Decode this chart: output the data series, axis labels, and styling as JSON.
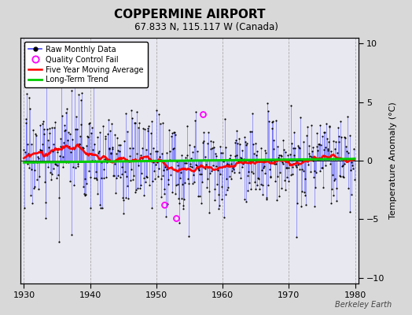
{
  "title": "COPPERMINE AIRPORT",
  "subtitle": "67.833 N, 115.117 W (Canada)",
  "ylabel": "Temperature Anomaly (°C)",
  "watermark": "Berkeley Earth",
  "xlim": [
    1929.5,
    1980.5
  ],
  "ylim": [
    -10.5,
    10.5
  ],
  "yticks_right": [
    10,
    5,
    0,
    -5,
    -10
  ],
  "xticks": [
    1930,
    1940,
    1950,
    1960,
    1970,
    1980
  ],
  "year_start": 1930,
  "year_end": 1980,
  "seed": 17,
  "background_color": "#d8d8d8",
  "plot_bg_color": "#e8e8f0",
  "raw_line_color": "#4444ff",
  "raw_dot_color": "#000000",
  "moving_avg_color": "#ff0000",
  "trend_color": "#00cc00",
  "qc_fail_color": "#ff00ff",
  "qc_fail_points": [
    [
      1951.25,
      -3.8
    ],
    [
      1953.0,
      -4.9
    ],
    [
      1957.0,
      4.0
    ]
  ],
  "moving_avg_window": 60,
  "figsize": [
    5.24,
    4.0
  ],
  "dpi": 100
}
